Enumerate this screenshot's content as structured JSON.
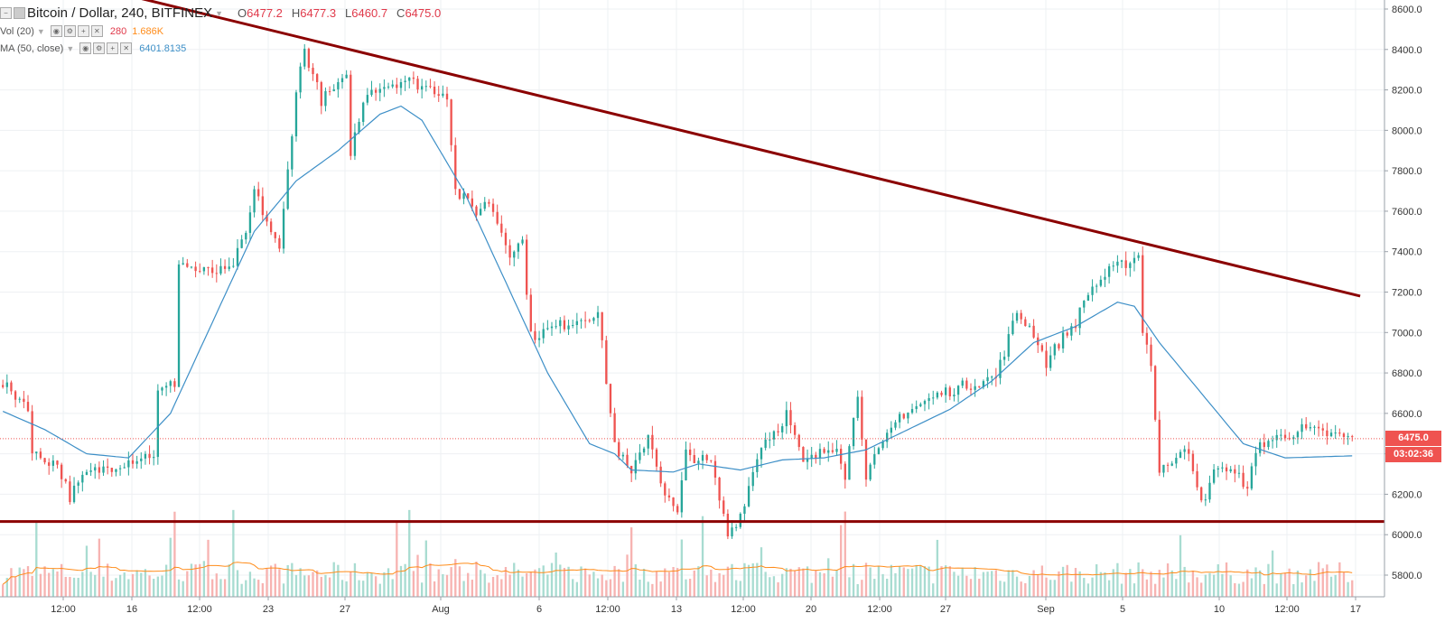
{
  "header": {
    "symbol": "Bitcoin / Dollar, 240, BITFINEX",
    "open_label": "O",
    "open": "6477.2",
    "high_label": "H",
    "high": "6477.3",
    "low_label": "L",
    "low": "6460.7",
    "close_label": "C",
    "close": "6475.0"
  },
  "volume_study": {
    "name": "Vol (20)",
    "value": "280",
    "ma_value": "1.686K"
  },
  "ma_study": {
    "name": "MA (50, close)",
    "value": "6401.8135"
  },
  "price_tags": {
    "last_price": "6475.0",
    "countdown": "03:02:36"
  },
  "colors": {
    "up": "#26a69a",
    "down": "#ef5350",
    "ma": "#3d8fc7",
    "vol_ma": "#ff8c1a",
    "trendline": "#8b0000"
  },
  "chart_data": {
    "type": "candlestick",
    "x_tick_labels": [
      "12:00",
      "16",
      "12:00",
      "23",
      "27",
      "Aug",
      "6",
      "12:00",
      "13",
      "12:00",
      "20",
      "12:00",
      "27",
      "Sep",
      "5",
      "10",
      "12:00",
      "17"
    ],
    "y_tick_labels": [
      "8600.0",
      "8400.0",
      "8200.0",
      "8000.0",
      "7800.0",
      "7600.0",
      "7400.0",
      "7200.0",
      "7000.0",
      "6800.0",
      "6600.0",
      "6400.0",
      "6200.0",
      "6000.0",
      "5800.0"
    ],
    "ylim": [
      5740,
      8660
    ],
    "ohlc_anchors": [
      [
        0,
        6740
      ],
      [
        6,
        6640
      ],
      [
        7,
        6400
      ],
      [
        13,
        6350
      ],
      [
        16,
        6190
      ],
      [
        20,
        6300
      ],
      [
        32,
        6380
      ],
      [
        36,
        6400
      ],
      [
        37,
        6700
      ],
      [
        41,
        6750
      ],
      [
        42,
        7350
      ],
      [
        47,
        7300
      ],
      [
        54,
        7300
      ],
      [
        58,
        7480
      ],
      [
        60,
        7700
      ],
      [
        66,
        7400
      ],
      [
        70,
        8200
      ],
      [
        72,
        8400
      ],
      [
        76,
        8150
      ],
      [
        82,
        8250
      ],
      [
        83,
        7900
      ],
      [
        87,
        8200
      ],
      [
        96,
        8250
      ],
      [
        106,
        8180
      ],
      [
        108,
        7700
      ],
      [
        113,
        7600
      ],
      [
        116,
        7650
      ],
      [
        118,
        7550
      ],
      [
        121,
        7400
      ],
      [
        124,
        7450
      ],
      [
        126,
        6980
      ],
      [
        135,
        7050
      ],
      [
        142,
        7100
      ],
      [
        145,
        6600
      ],
      [
        146,
        6450
      ],
      [
        150,
        6290
      ],
      [
        154,
        6500
      ],
      [
        158,
        6200
      ],
      [
        161,
        6100
      ],
      [
        163,
        6400
      ],
      [
        169,
        6350
      ],
      [
        173,
        6000
      ],
      [
        176,
        6100
      ],
      [
        181,
        6450
      ],
      [
        185,
        6530
      ],
      [
        187,
        6600
      ],
      [
        191,
        6350
      ],
      [
        199,
        6450
      ],
      [
        201,
        6300
      ],
      [
        204,
        6700
      ],
      [
        206,
        6300
      ],
      [
        210,
        6440
      ],
      [
        214,
        6590
      ],
      [
        224,
        6700
      ],
      [
        230,
        6740
      ],
      [
        237,
        6780
      ],
      [
        242,
        7100
      ],
      [
        246,
        7000
      ],
      [
        249,
        6850
      ],
      [
        252,
        6950
      ],
      [
        256,
        7050
      ],
      [
        259,
        7200
      ],
      [
        264,
        7300
      ],
      [
        271,
        7380
      ],
      [
        272,
        7020
      ],
      [
        274,
        6850
      ],
      [
        276,
        6300
      ],
      [
        282,
        6450
      ],
      [
        286,
        6150
      ],
      [
        290,
        6350
      ],
      [
        297,
        6250
      ],
      [
        300,
        6450
      ],
      [
        310,
        6520
      ],
      [
        322,
        6475
      ]
    ],
    "ma50_anchors": [
      [
        0,
        6610
      ],
      [
        10,
        6520
      ],
      [
        20,
        6400
      ],
      [
        30,
        6380
      ],
      [
        40,
        6600
      ],
      [
        50,
        7050
      ],
      [
        60,
        7500
      ],
      [
        70,
        7750
      ],
      [
        80,
        7900
      ],
      [
        90,
        8080
      ],
      [
        95,
        8120
      ],
      [
        100,
        8050
      ],
      [
        110,
        7700
      ],
      [
        120,
        7250
      ],
      [
        130,
        6800
      ],
      [
        140,
        6450
      ],
      [
        146,
        6400
      ],
      [
        150,
        6320
      ],
      [
        160,
        6310
      ],
      [
        166,
        6350
      ],
      [
        176,
        6320
      ],
      [
        186,
        6370
      ],
      [
        196,
        6380
      ],
      [
        206,
        6420
      ],
      [
        216,
        6520
      ],
      [
        226,
        6620
      ],
      [
        236,
        6760
      ],
      [
        246,
        6950
      ],
      [
        256,
        7030
      ],
      [
        266,
        7150
      ],
      [
        270,
        7130
      ],
      [
        276,
        6950
      ],
      [
        286,
        6700
      ],
      [
        296,
        6450
      ],
      [
        306,
        6380
      ],
      [
        322,
        6390
      ]
    ],
    "support_level": 6065,
    "resistance_line": {
      "start": [
        0,
        8820
      ],
      "end": [
        322,
        7180
      ]
    },
    "last_price_line": 6475,
    "volume_relative_range": [
      0.05,
      0.55
    ]
  }
}
